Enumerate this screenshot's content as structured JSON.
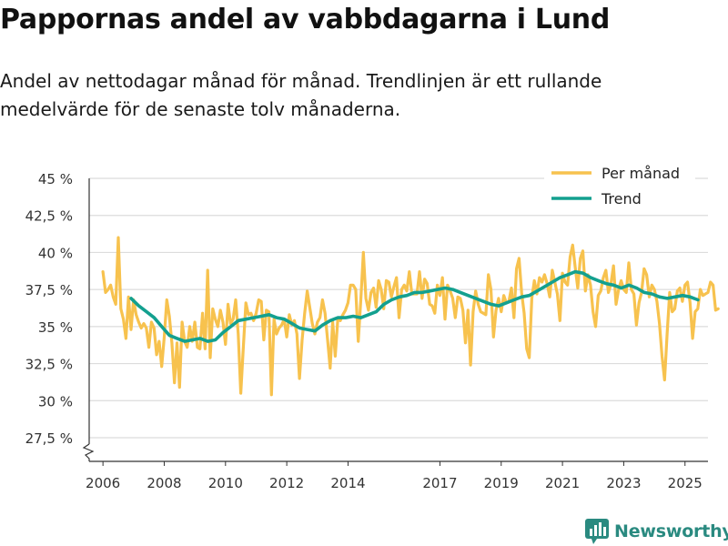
{
  "title": "Pappornas andel av vabbdagarna i Lund",
  "subtitle": "Andel av nettodagar månad för månad. Trendlinjen är ett rullande medelvärde för de senaste tolv månaderna.",
  "brand": {
    "name": "Newsworthy"
  },
  "colors": {
    "per_month": "#f7c24e",
    "trend": "#13a08f",
    "grid": "#dcdcdc",
    "axis": "#333333",
    "brand": "#2a8a80"
  },
  "chart_data": {
    "type": "line",
    "title": "Pappornas andel av vabbdagarna i Lund",
    "xlabel": "",
    "ylabel": "",
    "x_unit": "year (decimal, monthly points)",
    "xlim": [
      2005.55,
      2025.75
    ],
    "ylim": [
      26.5,
      45
    ],
    "axis_break": true,
    "yticks": [
      27.5,
      30,
      32.5,
      35,
      37.5,
      40,
      42.5,
      45
    ],
    "ytick_labels": [
      "27,5 %",
      "30 %",
      "32,5 %",
      "35 %",
      "37,5 %",
      "40 %",
      "42,5 %",
      "45 %"
    ],
    "xticks": [
      2006,
      2008,
      2010,
      2012,
      2014,
      2017,
      2019,
      2021,
      2023,
      2025
    ],
    "xtick_labels": [
      "2006",
      "2008",
      "2010",
      "2012",
      "2014",
      "2017",
      "2019",
      "2021",
      "2023",
      "2025"
    ],
    "legend": {
      "position": "top-right",
      "entries": [
        "Per månad",
        "Trend"
      ]
    },
    "series": [
      {
        "name": "Per månad",
        "start": 2006.0,
        "step": 0.08333,
        "values": [
          38.7,
          37.3,
          37.5,
          37.8,
          37.0,
          36.5,
          41.0,
          36.2,
          35.5,
          34.2,
          37.0,
          34.8,
          36.8,
          35.8,
          35.3,
          34.9,
          35.2,
          34.9,
          33.6,
          35.3,
          34.9,
          33.1,
          34.0,
          32.3,
          34.3,
          36.8,
          35.7,
          33.9,
          31.2,
          33.9,
          30.9,
          35.3,
          34.0,
          33.6,
          35.0,
          34.0,
          35.3,
          33.6,
          33.5,
          35.9,
          33.5,
          38.8,
          32.9,
          36.2,
          35.5,
          35.0,
          36.1,
          35.3,
          33.8,
          36.5,
          35.2,
          35.5,
          36.8,
          34.5,
          30.5,
          33.6,
          36.6,
          35.8,
          35.9,
          35.4,
          35.9,
          36.8,
          36.7,
          34.1,
          36.1,
          36.0,
          30.4,
          35.5,
          34.5,
          34.9,
          35.1,
          35.5,
          34.3,
          35.8,
          35.1,
          35.4,
          34.5,
          31.5,
          34.1,
          35.9,
          37.4,
          36.3,
          35.2,
          34.5,
          35.3,
          35.6,
          36.8,
          35.9,
          34.1,
          32.2,
          35.3,
          33.0,
          35.5,
          35.4,
          35.8,
          36.1,
          36.6,
          37.8,
          37.8,
          37.5,
          34.0,
          36.8,
          40.0,
          36.9,
          36.1,
          37.3,
          37.6,
          36.3,
          38.1,
          37.5,
          36.2,
          38.1,
          38.0,
          37.0,
          37.7,
          38.3,
          35.6,
          37.5,
          37.8,
          37.4,
          38.7,
          37.2,
          37.2,
          37.2,
          38.7,
          36.9,
          38.2,
          37.9,
          36.5,
          36.4,
          35.9,
          37.8,
          37.1,
          38.3,
          35.5,
          37.8,
          37.4,
          36.9,
          35.6,
          37.0,
          36.9,
          36.1,
          33.9,
          36.1,
          32.4,
          36.0,
          37.4,
          36.5,
          36.0,
          35.9,
          35.8,
          38.5,
          37.5,
          34.3,
          36.1,
          36.9,
          36.0,
          37.1,
          36.6,
          36.7,
          37.6,
          35.6,
          38.9,
          39.6,
          37.3,
          35.9,
          33.5,
          32.9,
          36.9,
          38.1,
          37.2,
          38.3,
          38.0,
          38.5,
          37.9,
          37.0,
          38.8,
          38.0,
          37.2,
          35.4,
          38.6,
          38.0,
          37.8,
          39.7,
          40.5,
          39.0,
          37.6,
          39.6,
          40.1,
          37.4,
          38.5,
          37.8,
          36.0,
          35.0,
          37.1,
          37.4,
          38.3,
          38.8,
          37.3,
          37.9,
          39.1,
          36.5,
          37.5,
          38.1,
          37.5,
          37.3,
          39.3,
          37.5,
          37.2,
          35.1,
          36.6,
          37.3,
          38.9,
          38.5,
          37.0,
          37.8,
          37.5,
          36.7,
          35.2,
          33.0,
          31.4,
          34.5,
          37.3,
          36.0,
          36.2,
          37.4,
          37.6,
          36.7,
          37.8,
          38.0,
          36.6,
          34.2,
          36.0,
          36.2,
          37.5,
          37.1,
          37.2,
          37.3,
          38.0,
          37.8,
          36.1,
          36.2
        ]
      },
      {
        "name": "Trend",
        "points": [
          [
            2006.92,
            36.9
          ],
          [
            2007.17,
            36.4
          ],
          [
            2007.42,
            36.0
          ],
          [
            2007.67,
            35.6
          ],
          [
            2007.92,
            35.0
          ],
          [
            2008.17,
            34.4
          ],
          [
            2008.42,
            34.2
          ],
          [
            2008.67,
            34.0
          ],
          [
            2008.92,
            34.1
          ],
          [
            2009.17,
            34.2
          ],
          [
            2009.42,
            34.0
          ],
          [
            2009.67,
            34.1
          ],
          [
            2009.92,
            34.6
          ],
          [
            2010.17,
            35.0
          ],
          [
            2010.42,
            35.4
          ],
          [
            2010.67,
            35.5
          ],
          [
            2010.92,
            35.6
          ],
          [
            2011.17,
            35.7
          ],
          [
            2011.42,
            35.8
          ],
          [
            2011.67,
            35.6
          ],
          [
            2011.92,
            35.5
          ],
          [
            2012.17,
            35.2
          ],
          [
            2012.42,
            34.9
          ],
          [
            2012.67,
            34.8
          ],
          [
            2012.92,
            34.7
          ],
          [
            2013.17,
            35.1
          ],
          [
            2013.42,
            35.4
          ],
          [
            2013.67,
            35.6
          ],
          [
            2013.92,
            35.6
          ],
          [
            2014.17,
            35.7
          ],
          [
            2014.42,
            35.6
          ],
          [
            2014.67,
            35.8
          ],
          [
            2014.92,
            36.0
          ],
          [
            2015.17,
            36.5
          ],
          [
            2015.42,
            36.8
          ],
          [
            2015.67,
            37.0
          ],
          [
            2015.92,
            37.1
          ],
          [
            2016.17,
            37.3
          ],
          [
            2016.42,
            37.3
          ],
          [
            2016.67,
            37.4
          ],
          [
            2016.92,
            37.5
          ],
          [
            2017.17,
            37.6
          ],
          [
            2017.42,
            37.5
          ],
          [
            2017.67,
            37.3
          ],
          [
            2017.92,
            37.1
          ],
          [
            2018.17,
            36.9
          ],
          [
            2018.42,
            36.7
          ],
          [
            2018.67,
            36.5
          ],
          [
            2018.92,
            36.4
          ],
          [
            2019.17,
            36.6
          ],
          [
            2019.42,
            36.8
          ],
          [
            2019.67,
            37.0
          ],
          [
            2019.92,
            37.1
          ],
          [
            2020.17,
            37.4
          ],
          [
            2020.42,
            37.7
          ],
          [
            2020.67,
            38.0
          ],
          [
            2020.92,
            38.3
          ],
          [
            2021.17,
            38.5
          ],
          [
            2021.42,
            38.7
          ],
          [
            2021.67,
            38.6
          ],
          [
            2021.92,
            38.3
          ],
          [
            2022.17,
            38.1
          ],
          [
            2022.42,
            37.9
          ],
          [
            2022.67,
            37.8
          ],
          [
            2022.92,
            37.6
          ],
          [
            2023.17,
            37.8
          ],
          [
            2023.42,
            37.6
          ],
          [
            2023.67,
            37.3
          ],
          [
            2023.92,
            37.2
          ],
          [
            2024.17,
            37.0
          ],
          [
            2024.42,
            36.9
          ],
          [
            2024.67,
            37.0
          ],
          [
            2024.92,
            37.1
          ],
          [
            2025.17,
            37.0
          ],
          [
            2025.42,
            36.8
          ]
        ]
      }
    ]
  }
}
